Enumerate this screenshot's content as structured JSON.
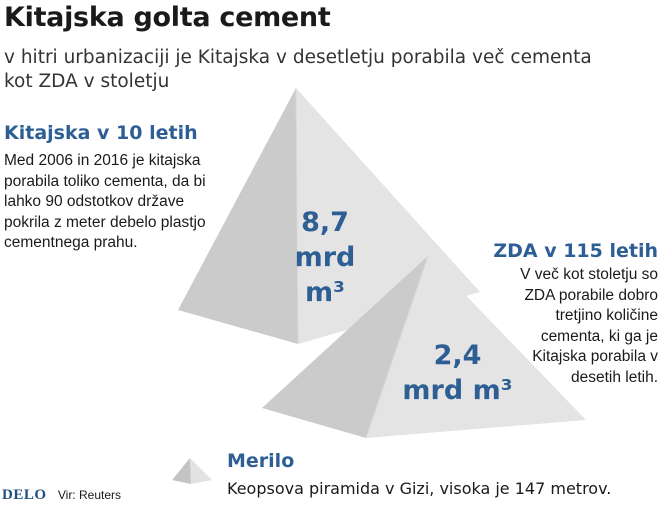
{
  "header": {
    "title": "Kitajska golta cement",
    "subtitle": "v hitri urbanizaciji je Kitajska v desetletju porabila več cementa kot ZDA v stoletju"
  },
  "china": {
    "title": "Kitajska v 10 letih",
    "text": "Med 2006 in 2016 je kitajska porabila toliko cementa, da bi lahko 90 odstotkov države pokrila z meter debelo plastjo cementnega prahu.",
    "value_number": "8,7",
    "value_unit": "mrd m³"
  },
  "usa": {
    "title": "ZDA v 115 letih",
    "text": "V več kot stoletju so ZDA porabile dobro tretjino količine cementa, ki ga je Kitajska porabila v desetih letih.",
    "value_number": "2,4",
    "value_unit": "mrd m³"
  },
  "legend": {
    "title": "Merilo",
    "text": "Keopsova piramida v Gizi, visoka je 147 metrov."
  },
  "footer": {
    "brand": "DELO",
    "source": "Vir: Reuters"
  },
  "colors": {
    "accent": "#2e5f94",
    "pyramid_light": "#e6e6e6",
    "pyramid_shadow": "#c9c9c9",
    "background": "#ffffff"
  }
}
